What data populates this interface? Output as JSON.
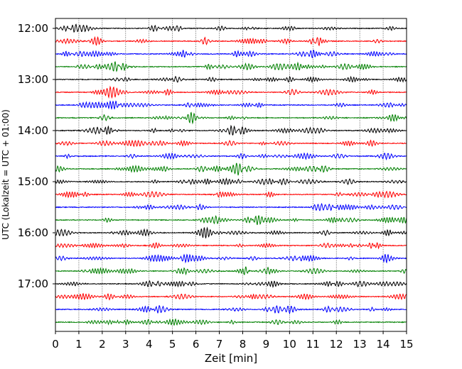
{
  "chart_data": {
    "type": "line",
    "title": "",
    "xlabel": "Zeit  [min]",
    "ylabel": "UTC (Lokalzeit = UTC + 01:00)",
    "xlim": [
      0,
      15
    ],
    "x_ticks": [
      "0",
      "1",
      "2",
      "3",
      "4",
      "5",
      "6",
      "7",
      "8",
      "9",
      "10",
      "11",
      "12",
      "13",
      "14",
      "15"
    ],
    "y_tick_labels": [
      "12:00",
      "13:00",
      "14:00",
      "15:00",
      "16:00",
      "17:00"
    ],
    "trace_interval_min": 15,
    "trace_start": "12:00",
    "trace_count": 24,
    "trace_colors": [
      "#000000",
      "#ff0000",
      "#0000ff",
      "#008000"
    ],
    "grid": {
      "x": "dotted",
      "y": "none"
    }
  }
}
